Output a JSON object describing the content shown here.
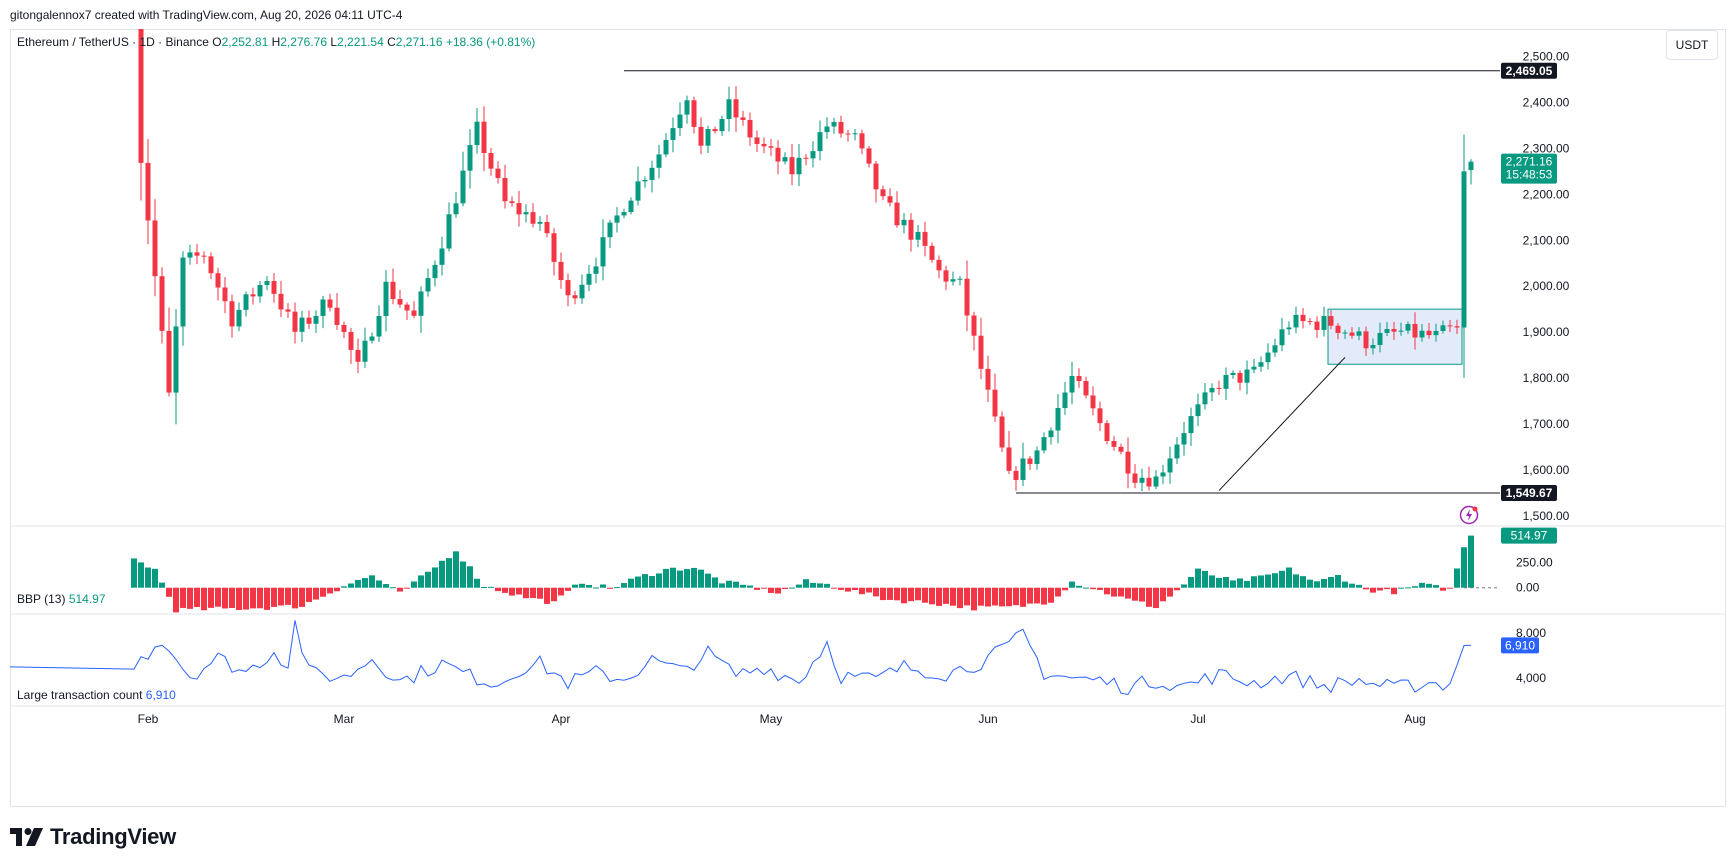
{
  "header": {
    "credit": "gitongalennox7 created with TradingView.com, Aug 20, 2026 04:11 UTC-4"
  },
  "legend": {
    "symbol": "Ethereum / TetherUS · 1D · Binance",
    "o_label": "O",
    "o": "2,252.81",
    "h_label": "H",
    "h": "2,276.76",
    "l_label": "L",
    "l": "2,221.54",
    "c_label": "C",
    "c": "2,271.16",
    "change": "+18.36 (+0.81%)"
  },
  "currency": "USDT",
  "price_axis": {
    "ticks": [
      "2,500.00",
      "2,400.00",
      "2,300.00",
      "2,200.00",
      "2,100.00",
      "2,000.00",
      "1,900.00",
      "1,800.00",
      "1,700.00",
      "1,600.00",
      "1,500.00"
    ],
    "resistance_label": "2,469.05",
    "support_label": "1,549.67",
    "last_price_label": "2,271.16",
    "countdown_label": "15:48:53"
  },
  "time_axis": {
    "months": [
      "Feb",
      "Mar",
      "Apr",
      "May",
      "Jun",
      "Jul",
      "Aug"
    ]
  },
  "bbp": {
    "title": "BBP (13)",
    "value": "514.97",
    "ticks": [
      "250.00",
      "0.00"
    ],
    "value_label": "514.97"
  },
  "ltc": {
    "title": "Large transaction count",
    "value": "6,910",
    "ticks": [
      "8,000",
      "4,000"
    ],
    "value_label": "6,910"
  },
  "brand": {
    "name": "TradingView"
  },
  "colors": {
    "up": "#089981",
    "down": "#f23645",
    "ltc_line": "#2962ff",
    "range_box": "#e3ebfb",
    "range_border": "#089981"
  },
  "chart_data": [
    {
      "type": "candlestick",
      "title": "Ethereum / TetherUS · 1D · Binance",
      "x_labels": [
        "Feb",
        "Mar",
        "Apr",
        "May",
        "Jun",
        "Jul",
        "Aug"
      ],
      "ylim": [
        1480,
        2560
      ],
      "last": {
        "open": 2252.81,
        "high": 2276.76,
        "low": 2221.54,
        "close": 2271.16
      },
      "horizontal_levels": [
        2469.05,
        1549.67
      ],
      "consolidation_range": [
        1830,
        1950
      ],
      "anchors": [
        {
          "day": 0,
          "close": 2620
        },
        {
          "day": 1,
          "close": 2280
        },
        {
          "day": 3,
          "close": 2020
        },
        {
          "day": 5,
          "close": 1760
        },
        {
          "day": 7,
          "close": 2050
        },
        {
          "day": 10,
          "close": 2070
        },
        {
          "day": 14,
          "close": 1930
        },
        {
          "day": 19,
          "close": 2020
        },
        {
          "day": 23,
          "close": 1900
        },
        {
          "day": 28,
          "close": 1970
        },
        {
          "day": 32,
          "close": 1820
        },
        {
          "day": 36,
          "close": 2000
        },
        {
          "day": 40,
          "close": 1930
        },
        {
          "day": 44,
          "close": 2100
        },
        {
          "day": 49,
          "close": 2340
        },
        {
          "day": 53,
          "close": 2180
        },
        {
          "day": 58,
          "close": 2140
        },
        {
          "day": 62,
          "close": 1970
        },
        {
          "day": 66,
          "close": 2060
        },
        {
          "day": 70,
          "close": 2180
        },
        {
          "day": 75,
          "close": 2290
        },
        {
          "day": 79,
          "close": 2420
        },
        {
          "day": 81,
          "close": 2300
        },
        {
          "day": 85,
          "close": 2390
        },
        {
          "day": 89,
          "close": 2310
        },
        {
          "day": 94,
          "close": 2250
        },
        {
          "day": 99,
          "close": 2350
        },
        {
          "day": 103,
          "close": 2320
        },
        {
          "day": 107,
          "close": 2180
        },
        {
          "day": 112,
          "close": 2100
        },
        {
          "day": 115,
          "close": 2030
        },
        {
          "day": 118,
          "close": 2000
        },
        {
          "day": 121,
          "close": 1820
        },
        {
          "day": 125,
          "close": 1580
        },
        {
          "day": 129,
          "close": 1640
        },
        {
          "day": 134,
          "close": 1800
        },
        {
          "day": 138,
          "close": 1700
        },
        {
          "day": 143,
          "close": 1590
        },
        {
          "day": 146,
          "close": 1580
        },
        {
          "day": 150,
          "close": 1690
        },
        {
          "day": 155,
          "close": 1790
        },
        {
          "day": 160,
          "close": 1810
        },
        {
          "day": 165,
          "close": 1920
        },
        {
          "day": 171,
          "close": 1920
        },
        {
          "day": 176,
          "close": 1880
        },
        {
          "day": 181,
          "close": 1900
        },
        {
          "day": 186,
          "close": 1890
        },
        {
          "day": 189,
          "close": 1910
        },
        {
          "day": 190,
          "close": 2250
        },
        {
          "day": 191,
          "close": 2271.16
        }
      ]
    },
    {
      "type": "bar",
      "title": "BBP (13)",
      "last_value": 514.97,
      "ylim": [
        -250,
        600
      ],
      "anchors": [
        {
          "day": 0,
          "value": 280
        },
        {
          "day": 3,
          "value": 180
        },
        {
          "day": 6,
          "value": -220
        },
        {
          "day": 12,
          "value": -210
        },
        {
          "day": 18,
          "value": -200
        },
        {
          "day": 24,
          "value": -180
        },
        {
          "day": 30,
          "value": 20
        },
        {
          "day": 34,
          "value": 120
        },
        {
          "day": 38,
          "value": -60
        },
        {
          "day": 42,
          "value": 150
        },
        {
          "day": 46,
          "value": 370
        },
        {
          "day": 50,
          "value": 20
        },
        {
          "day": 55,
          "value": -80
        },
        {
          "day": 60,
          "value": -150
        },
        {
          "day": 64,
          "value": 60
        },
        {
          "day": 68,
          "value": -10
        },
        {
          "day": 72,
          "value": 100
        },
        {
          "day": 76,
          "value": 180
        },
        {
          "day": 80,
          "value": 200
        },
        {
          "day": 84,
          "value": 60
        },
        {
          "day": 88,
          "value": 10
        },
        {
          "day": 92,
          "value": -50
        },
        {
          "day": 96,
          "value": 60
        },
        {
          "day": 99,
          "value": 30
        },
        {
          "day": 103,
          "value": -40
        },
        {
          "day": 108,
          "value": -120
        },
        {
          "day": 114,
          "value": -150
        },
        {
          "day": 120,
          "value": -200
        },
        {
          "day": 126,
          "value": -190
        },
        {
          "day": 131,
          "value": -130
        },
        {
          "day": 134,
          "value": 60
        },
        {
          "day": 138,
          "value": -30
        },
        {
          "day": 142,
          "value": -120
        },
        {
          "day": 146,
          "value": -190
        },
        {
          "day": 149,
          "value": -30
        },
        {
          "day": 152,
          "value": 170
        },
        {
          "day": 157,
          "value": 60
        },
        {
          "day": 161,
          "value": 100
        },
        {
          "day": 165,
          "value": 180
        },
        {
          "day": 169,
          "value": 50
        },
        {
          "day": 172,
          "value": 120
        },
        {
          "day": 176,
          "value": -20
        },
        {
          "day": 180,
          "value": -40
        },
        {
          "day": 184,
          "value": 30
        },
        {
          "day": 188,
          "value": -20
        },
        {
          "day": 190,
          "value": 400
        },
        {
          "day": 191,
          "value": 514.97
        }
      ]
    },
    {
      "type": "line",
      "title": "Large transaction count",
      "last_value": 6910,
      "ylim": [
        1800,
        9600
      ],
      "anchors": [
        {
          "day": 0,
          "value": 5000
        },
        {
          "day": 4,
          "value": 7500
        },
        {
          "day": 8,
          "value": 4200
        },
        {
          "day": 12,
          "value": 5800
        },
        {
          "day": 16,
          "value": 4500
        },
        {
          "day": 20,
          "value": 6400
        },
        {
          "day": 22,
          "value": 5200
        },
        {
          "day": 23,
          "value": 8900
        },
        {
          "day": 25,
          "value": 4500
        },
        {
          "day": 30,
          "value": 4000
        },
        {
          "day": 34,
          "value": 5800
        },
        {
          "day": 38,
          "value": 3700
        },
        {
          "day": 44,
          "value": 5300
        },
        {
          "day": 48,
          "value": 4200
        },
        {
          "day": 52,
          "value": 3500
        },
        {
          "day": 55,
          "value": 4800
        },
        {
          "day": 58,
          "value": 5300
        },
        {
          "day": 62,
          "value": 3600
        },
        {
          "day": 66,
          "value": 4500
        },
        {
          "day": 70,
          "value": 3900
        },
        {
          "day": 74,
          "value": 5600
        },
        {
          "day": 78,
          "value": 4600
        },
        {
          "day": 82,
          "value": 6200
        },
        {
          "day": 86,
          "value": 4300
        },
        {
          "day": 90,
          "value": 5000
        },
        {
          "day": 95,
          "value": 3700
        },
        {
          "day": 99,
          "value": 7200
        },
        {
          "day": 101,
          "value": 4200
        },
        {
          "day": 106,
          "value": 3900
        },
        {
          "day": 110,
          "value": 5000
        },
        {
          "day": 116,
          "value": 4400
        },
        {
          "day": 121,
          "value": 5400
        },
        {
          "day": 125,
          "value": 6800
        },
        {
          "day": 127,
          "value": 8000
        },
        {
          "day": 130,
          "value": 4500
        },
        {
          "day": 134,
          "value": 4000
        },
        {
          "day": 138,
          "value": 3800
        },
        {
          "day": 142,
          "value": 3200
        },
        {
          "day": 146,
          "value": 3800
        },
        {
          "day": 150,
          "value": 3300
        },
        {
          "day": 155,
          "value": 4300
        },
        {
          "day": 160,
          "value": 3600
        },
        {
          "day": 165,
          "value": 4200
        },
        {
          "day": 170,
          "value": 3300
        },
        {
          "day": 175,
          "value": 3800
        },
        {
          "day": 180,
          "value": 3100
        },
        {
          "day": 185,
          "value": 3600
        },
        {
          "day": 188,
          "value": 3400
        },
        {
          "day": 190,
          "value": 6900
        },
        {
          "day": 191,
          "value": 6910
        }
      ]
    }
  ]
}
